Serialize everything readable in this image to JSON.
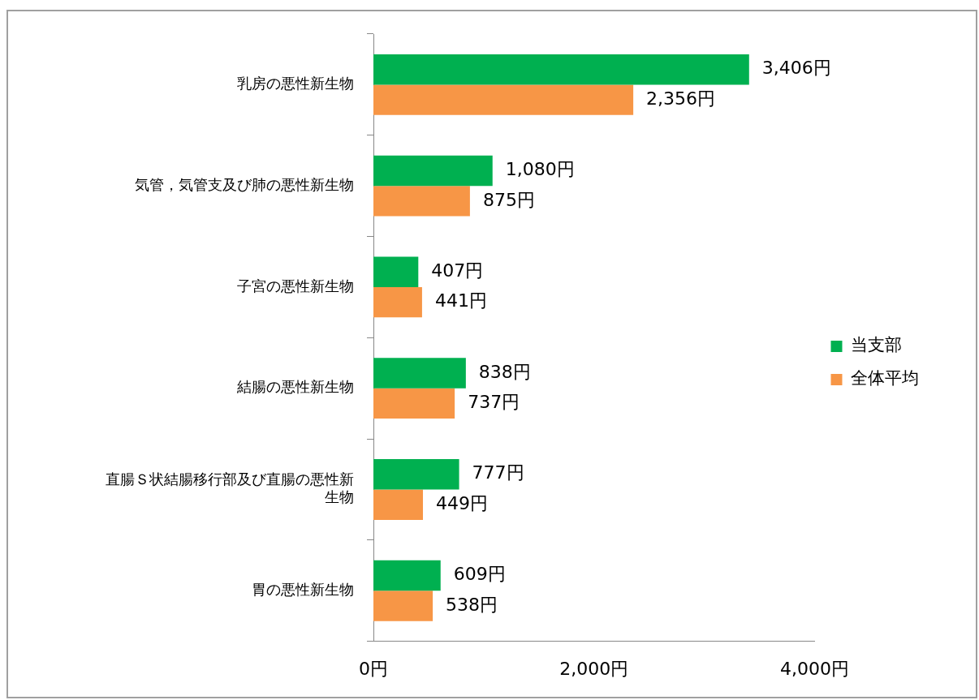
{
  "chart_data": {
    "type": "bar",
    "orientation": "horizontal",
    "categories": [
      "乳房の悪性新生物",
      "気管，気管支及び肺の悪性新生物",
      "子宮の悪性新生物",
      "結腸の悪性新生物",
      "直腸Ｓ状結腸移行部及び直腸の悪性新生物",
      "胃の悪性新生物"
    ],
    "series": [
      {
        "name": "当支部",
        "color": "#00b050",
        "values": [
          3406,
          1080,
          407,
          838,
          777,
          609
        ],
        "value_labels": [
          "3,406円",
          "1,080円",
          "407円",
          "838円",
          "777円",
          "609円"
        ]
      },
      {
        "name": "全体平均",
        "color": "#f79646",
        "values": [
          2356,
          875,
          441,
          737,
          449,
          538
        ],
        "value_labels": [
          "2,356円",
          "875円",
          "441円",
          "737円",
          "449円",
          "538円"
        ]
      }
    ],
    "xlim": [
      0,
      4000
    ],
    "xticks": [
      {
        "value": 0,
        "label": "0円"
      },
      {
        "value": 2000,
        "label": "2,000円"
      },
      {
        "value": 4000,
        "label": "4,000円"
      }
    ],
    "grid": false,
    "legend": "right"
  }
}
